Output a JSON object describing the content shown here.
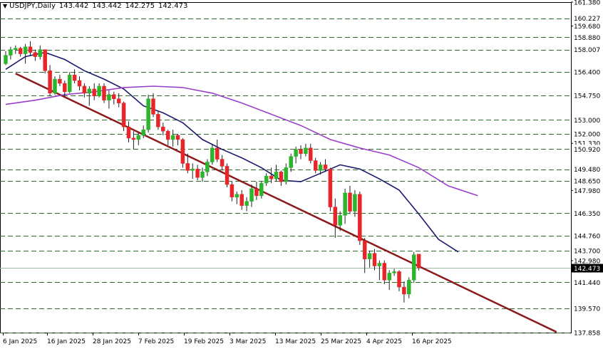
{
  "header": {
    "symbol": "USDJPY,Daily",
    "open": "143.442",
    "high": "143.442",
    "low": "142.275",
    "close": "142.473"
  },
  "chart_data": {
    "type": "candlestick",
    "symbol": "USDJPY",
    "timeframe": "Daily",
    "ylim": [
      137.858,
      161.38
    ],
    "y_ticks": [
      "161.380",
      "159.680",
      "151.330",
      "147.980",
      "142.980",
      "141.440"
    ],
    "x_tick_labels": [
      "6 Jan 2025",
      "16 Jan 2025",
      "28 Jan 2025",
      "7 Feb 2025",
      "19 Feb 2025",
      "3 Mar 2025",
      "13 Mar 2025",
      "25 Mar 2025",
      "4 Apr 2025",
      "16 Apr 2025"
    ],
    "levels": [
      "160.227",
      "158.880",
      "158.007",
      "156.400",
      "154.750",
      "153.000",
      "152.000",
      "150.920",
      "149.480",
      "148.650",
      "146.350",
      "144.760",
      "143.700",
      "141.440",
      "139.570",
      "137.858"
    ],
    "current_price": "142.473",
    "candles": [
      [
        157.0,
        157.9,
        156.9,
        157.6
      ],
      [
        157.6,
        158.2,
        157.3,
        158.0
      ],
      [
        158.0,
        158.3,
        157.7,
        158.1
      ],
      [
        158.1,
        158.2,
        157.5,
        157.7
      ],
      [
        157.7,
        158.4,
        157.0,
        158.2
      ],
      [
        158.2,
        158.6,
        157.6,
        157.8
      ],
      [
        157.8,
        158.0,
        157.2,
        157.5
      ],
      [
        157.5,
        158.3,
        157.3,
        158.0
      ],
      [
        158.0,
        158.0,
        156.3,
        156.5
      ],
      [
        156.5,
        156.9,
        154.7,
        154.9
      ],
      [
        154.9,
        156.1,
        154.8,
        155.9
      ],
      [
        155.9,
        156.2,
        155.4,
        155.6
      ],
      [
        155.6,
        155.8,
        154.7,
        155.0
      ],
      [
        155.0,
        156.4,
        154.9,
        156.2
      ],
      [
        156.2,
        156.6,
        155.6,
        155.8
      ],
      [
        155.8,
        156.1,
        155.1,
        155.4
      ],
      [
        155.4,
        155.6,
        154.6,
        154.9
      ],
      [
        154.9,
        155.4,
        154.0,
        155.2
      ],
      [
        155.2,
        155.6,
        154.4,
        154.7
      ],
      [
        154.7,
        155.6,
        154.6,
        155.4
      ],
      [
        155.4,
        155.6,
        154.2,
        154.4
      ],
      [
        154.4,
        155.1,
        153.8,
        154.8
      ],
      [
        154.8,
        155.0,
        154.1,
        154.5
      ],
      [
        154.5,
        154.9,
        153.9,
        154.2
      ],
      [
        154.2,
        154.3,
        152.2,
        152.5
      ],
      [
        152.5,
        152.9,
        151.4,
        151.7
      ],
      [
        151.7,
        152.2,
        150.9,
        151.6
      ],
      [
        151.6,
        152.1,
        151.2,
        151.9
      ],
      [
        151.9,
        152.6,
        151.7,
        152.3
      ],
      [
        152.3,
        154.8,
        152.1,
        154.5
      ],
      [
        154.5,
        154.9,
        153.2,
        153.4
      ],
      [
        153.4,
        153.6,
        152.3,
        152.5
      ],
      [
        152.5,
        152.8,
        151.9,
        152.2
      ],
      [
        152.2,
        152.3,
        151.2,
        151.6
      ],
      [
        151.6,
        152.3,
        151.1,
        151.9
      ],
      [
        151.9,
        152.0,
        151.2,
        151.6
      ],
      [
        151.6,
        151.7,
        149.6,
        149.9
      ],
      [
        149.9,
        150.6,
        149.2,
        149.4
      ],
      [
        149.4,
        149.9,
        148.8,
        149.5
      ],
      [
        149.5,
        149.8,
        148.7,
        148.9
      ],
      [
        148.9,
        149.6,
        148.6,
        149.3
      ],
      [
        149.3,
        150.2,
        149.0,
        150.0
      ],
      [
        150.0,
        151.3,
        149.8,
        151.0
      ],
      [
        151.0,
        151.6,
        150.0,
        150.2
      ],
      [
        150.2,
        150.5,
        149.4,
        149.7
      ],
      [
        149.7,
        149.9,
        148.2,
        148.4
      ],
      [
        148.4,
        148.6,
        147.2,
        147.5
      ],
      [
        147.5,
        147.9,
        147.0,
        147.7
      ],
      [
        147.7,
        148.0,
        146.6,
        146.9
      ],
      [
        146.9,
        147.5,
        146.5,
        147.2
      ],
      [
        147.2,
        148.4,
        146.8,
        148.1
      ],
      [
        148.1,
        148.6,
        147.3,
        147.6
      ],
      [
        147.6,
        148.6,
        147.4,
        148.5
      ],
      [
        148.5,
        149.2,
        148.3,
        149.0
      ],
      [
        149.0,
        149.6,
        148.5,
        148.8
      ],
      [
        148.8,
        149.8,
        148.6,
        149.3
      ],
      [
        149.3,
        149.4,
        148.3,
        148.6
      ],
      [
        148.6,
        149.9,
        148.4,
        149.6
      ],
      [
        149.6,
        150.6,
        149.3,
        150.4
      ],
      [
        150.4,
        151.1,
        149.9,
        150.9
      ],
      [
        150.9,
        151.2,
        150.2,
        150.6
      ],
      [
        150.6,
        151.3,
        150.4,
        151.0
      ],
      [
        151.0,
        151.3,
        149.9,
        150.1
      ],
      [
        150.1,
        150.3,
        149.2,
        149.4
      ],
      [
        149.4,
        150.0,
        149.1,
        149.8
      ],
      [
        149.8,
        150.2,
        149.3,
        149.5
      ],
      [
        149.5,
        149.6,
        146.5,
        146.8
      ],
      [
        146.8,
        147.4,
        144.6,
        145.5
      ],
      [
        145.5,
        146.5,
        145.1,
        146.2
      ],
      [
        146.2,
        148.1,
        145.6,
        147.8
      ],
      [
        147.8,
        148.3,
        146.3,
        146.5
      ],
      [
        146.5,
        148.0,
        146.1,
        147.7
      ],
      [
        147.7,
        147.9,
        144.1,
        144.4
      ],
      [
        144.4,
        144.6,
        142.1,
        143.1
      ],
      [
        143.1,
        143.7,
        142.5,
        143.5
      ],
      [
        143.5,
        143.8,
        142.3,
        142.6
      ],
      [
        142.6,
        143.0,
        141.6,
        142.8
      ],
      [
        142.8,
        143.0,
        141.3,
        141.6
      ],
      [
        141.6,
        142.3,
        140.9,
        142.1
      ],
      [
        142.1,
        142.4,
        141.9,
        142.2
      ],
      [
        142.2,
        142.3,
        140.8,
        141.1
      ],
      [
        141.1,
        141.5,
        140.0,
        140.6
      ],
      [
        140.6,
        141.8,
        140.3,
        141.6
      ],
      [
        141.6,
        143.6,
        141.4,
        143.4
      ],
      [
        143.442,
        143.442,
        142.275,
        142.473
      ]
    ],
    "moving_averages": [
      {
        "color": "#1a1a6e",
        "points": [
          [
            0,
            156.6
          ],
          [
            4,
            157.5
          ],
          [
            8,
            157.8
          ],
          [
            12,
            157.3
          ],
          [
            16,
            156.5
          ],
          [
            20,
            155.9
          ],
          [
            24,
            155.2
          ],
          [
            28,
            154.0
          ],
          [
            32,
            153.5
          ],
          [
            36,
            152.8
          ],
          [
            40,
            151.6
          ],
          [
            44,
            150.9
          ],
          [
            48,
            150.3
          ],
          [
            52,
            149.6
          ],
          [
            56,
            148.7
          ],
          [
            60,
            148.6
          ],
          [
            64,
            149.2
          ],
          [
            68,
            149.8
          ],
          [
            72,
            149.5
          ],
          [
            76,
            148.8
          ],
          [
            80,
            148.0
          ],
          [
            84,
            146.3
          ],
          [
            88,
            144.5
          ],
          [
            92,
            143.6
          ]
        ]
      },
      {
        "color": "#9a3fc9",
        "points": [
          [
            0,
            154.1
          ],
          [
            6,
            154.4
          ],
          [
            12,
            154.8
          ],
          [
            18,
            155.0
          ],
          [
            24,
            155.3
          ],
          [
            30,
            155.4
          ],
          [
            36,
            155.3
          ],
          [
            42,
            154.9
          ],
          [
            48,
            154.2
          ],
          [
            54,
            153.4
          ],
          [
            60,
            152.6
          ],
          [
            66,
            151.6
          ],
          [
            72,
            151.0
          ],
          [
            78,
            150.5
          ],
          [
            84,
            149.6
          ],
          [
            90,
            148.3
          ],
          [
            96,
            147.6
          ]
        ]
      }
    ],
    "trendline": {
      "color": "#8b1a1a",
      "from": [
        2,
        156.3
      ],
      "to": [
        112,
        137.9
      ]
    }
  }
}
